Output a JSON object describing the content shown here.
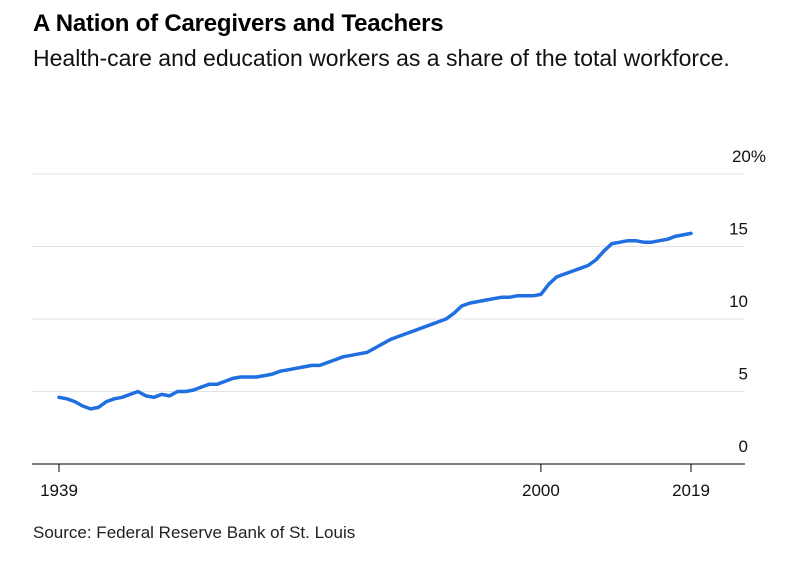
{
  "chart_data": {
    "type": "line",
    "title": "A Nation of Caregivers and Teachers",
    "subtitle": "Health-care and education workers as a share of the total workforce.",
    "source": "Source: Federal Reserve Bank of St. Louis",
    "xlim": [
      1939,
      2019
    ],
    "ylim": [
      0,
      20
    ],
    "x_ticks": [
      {
        "value": 1939,
        "label": "1939"
      },
      {
        "value": 2000,
        "label": "2000"
      },
      {
        "value": 2019,
        "label": "2019"
      }
    ],
    "y_ticks": [
      {
        "value": 0,
        "label": "0"
      },
      {
        "value": 5,
        "label": "5"
      },
      {
        "value": 10,
        "label": "10"
      },
      {
        "value": 15,
        "label": "15"
      },
      {
        "value": 20,
        "label": "20%"
      }
    ],
    "grid": true,
    "series": [
      {
        "color": "#1f6fe0",
        "points": [
          [
            1939,
            4.6
          ],
          [
            1940,
            4.5
          ],
          [
            1941,
            4.3
          ],
          [
            1942,
            4.0
          ],
          [
            1943,
            3.8
          ],
          [
            1944,
            3.9
          ],
          [
            1945,
            4.3
          ],
          [
            1946,
            4.5
          ],
          [
            1947,
            4.6
          ],
          [
            1948,
            4.8
          ],
          [
            1949,
            5.0
          ],
          [
            1950,
            4.7
          ],
          [
            1951,
            4.6
          ],
          [
            1952,
            4.8
          ],
          [
            1953,
            4.7
          ],
          [
            1954,
            5.0
          ],
          [
            1955,
            5.0
          ],
          [
            1956,
            5.1
          ],
          [
            1957,
            5.3
          ],
          [
            1958,
            5.5
          ],
          [
            1959,
            5.5
          ],
          [
            1960,
            5.7
          ],
          [
            1961,
            5.9
          ],
          [
            1962,
            6.0
          ],
          [
            1963,
            6.0
          ],
          [
            1964,
            6.0
          ],
          [
            1965,
            6.1
          ],
          [
            1966,
            6.2
          ],
          [
            1967,
            6.4
          ],
          [
            1968,
            6.5
          ],
          [
            1969,
            6.6
          ],
          [
            1970,
            6.7
          ],
          [
            1971,
            6.8
          ],
          [
            1972,
            6.8
          ],
          [
            1973,
            7.0
          ],
          [
            1974,
            7.2
          ],
          [
            1975,
            7.4
          ],
          [
            1976,
            7.5
          ],
          [
            1977,
            7.6
          ],
          [
            1978,
            7.7
          ],
          [
            1979,
            8.0
          ],
          [
            1980,
            8.3
          ],
          [
            1981,
            8.6
          ],
          [
            1982,
            8.8
          ],
          [
            1983,
            9.0
          ],
          [
            1984,
            9.2
          ],
          [
            1985,
            9.4
          ],
          [
            1986,
            9.6
          ],
          [
            1987,
            9.8
          ],
          [
            1988,
            10.0
          ],
          [
            1989,
            10.4
          ],
          [
            1990,
            10.9
          ],
          [
            1991,
            11.1
          ],
          [
            1992,
            11.2
          ],
          [
            1993,
            11.3
          ],
          [
            1994,
            11.4
          ],
          [
            1995,
            11.5
          ],
          [
            1996,
            11.5
          ],
          [
            1997,
            11.6
          ],
          [
            1998,
            11.6
          ],
          [
            1999,
            11.6
          ],
          [
            2000,
            11.7
          ],
          [
            2001,
            12.4
          ],
          [
            2002,
            12.9
          ],
          [
            2003,
            13.1
          ],
          [
            2004,
            13.3
          ],
          [
            2005,
            13.5
          ],
          [
            2006,
            13.7
          ],
          [
            2007,
            14.1
          ],
          [
            2008,
            14.7
          ],
          [
            2009,
            15.2
          ],
          [
            2010,
            15.3
          ],
          [
            2011,
            15.4
          ],
          [
            2012,
            15.4
          ],
          [
            2013,
            15.3
          ],
          [
            2014,
            15.3
          ],
          [
            2015,
            15.4
          ],
          [
            2016,
            15.5
          ],
          [
            2017,
            15.7
          ],
          [
            2018,
            15.8
          ],
          [
            2019,
            15.9
          ]
        ]
      }
    ]
  }
}
